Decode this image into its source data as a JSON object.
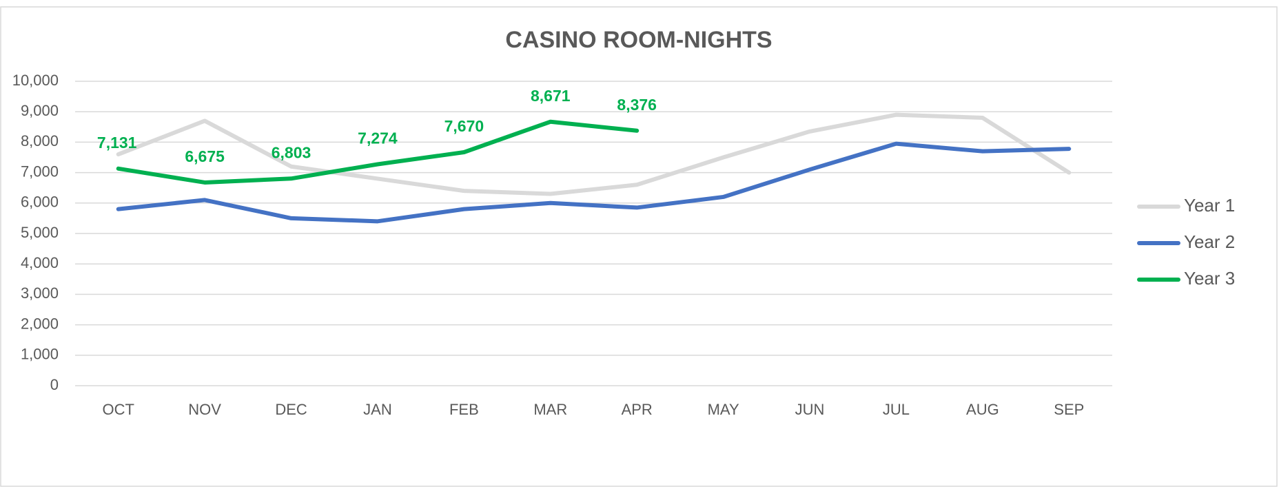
{
  "chart_data": {
    "type": "line",
    "title": "CASINO ROOM-NIGHTS",
    "categories": [
      "OCT",
      "NOV",
      "DEC",
      "JAN",
      "FEB",
      "MAR",
      "APR",
      "MAY",
      "JUN",
      "JUL",
      "AUG",
      "SEP"
    ],
    "series": [
      {
        "name": "Year 1",
        "color": "#d9d9d9",
        "values": [
          7600,
          8700,
          7200,
          6800,
          6400,
          6300,
          6600,
          7500,
          8350,
          8900,
          8800,
          7000
        ]
      },
      {
        "name": "Year 2",
        "color": "#4472c4",
        "values": [
          5800,
          6100,
          5500,
          5400,
          5800,
          6000,
          5850,
          6200,
          7100,
          7950,
          7700,
          7780
        ]
      },
      {
        "name": "Year 3",
        "color": "#00b050",
        "values": [
          7131,
          6675,
          6803,
          7274,
          7670,
          8671,
          8376,
          null,
          null,
          null,
          null,
          null
        ],
        "value_labels": [
          "7,131",
          "6,675",
          "6,803",
          "7,274",
          "7,670",
          "8,671",
          "8,376",
          null,
          null,
          null,
          null,
          null
        ]
      }
    ],
    "ylim": [
      0,
      10000
    ],
    "yticks": [
      0,
      {
        "value": 1000,
        "label": "1,000"
      },
      {
        "value": 2000,
        "label": "2,000"
      },
      {
        "value": 3000,
        "label": "3,000"
      },
      {
        "value": 4000,
        "label": "4,000"
      },
      {
        "value": 5000,
        "label": "5,000"
      },
      {
        "value": 6000,
        "label": "6,000"
      },
      {
        "value": 7000,
        "label": "7,000"
      },
      {
        "value": 8000,
        "label": "8,000"
      },
      {
        "value": 9000,
        "label": "9,000"
      },
      {
        "value": 10000,
        "label": "10,000"
      }
    ],
    "grid": true,
    "legend": "right"
  }
}
